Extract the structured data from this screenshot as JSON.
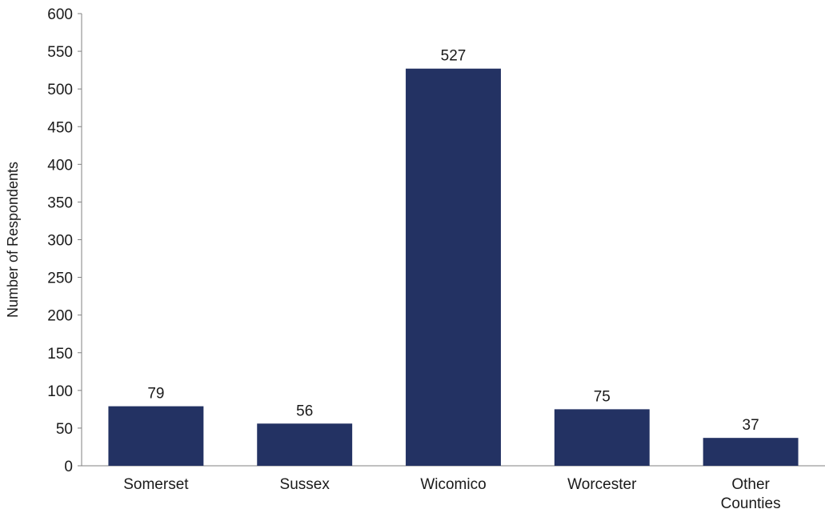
{
  "chart_data": {
    "type": "bar",
    "categories": [
      [
        "Somerset"
      ],
      [
        "Sussex"
      ],
      [
        "Wicomico"
      ],
      [
        "Worcester"
      ],
      [
        "Other",
        "Counties"
      ]
    ],
    "values": [
      79,
      56,
      527,
      75,
      37
    ],
    "data_labels": [
      "79",
      "56",
      "527",
      "75",
      "37"
    ],
    "xlabel": "",
    "ylabel": "Number of Respondents",
    "ylim": [
      0,
      600
    ],
    "yticks": [
      0,
      50,
      100,
      150,
      200,
      250,
      300,
      350,
      400,
      450,
      500,
      550,
      600
    ],
    "bar_color": "#233263",
    "grid": false,
    "legend": "none"
  }
}
